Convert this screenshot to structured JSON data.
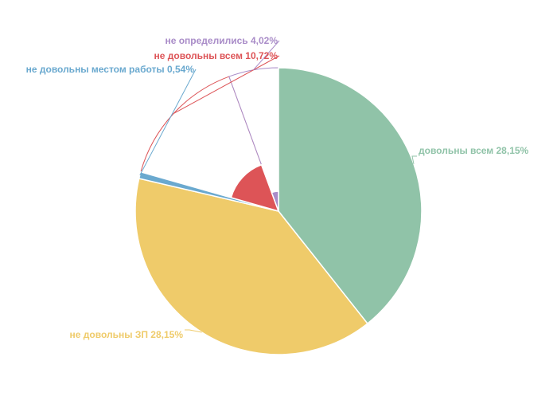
{
  "chart_data": {
    "type": "pie",
    "title": "",
    "slices": [
      {
        "label": "довольны всем 28,15%",
        "value": 40.29,
        "color": "#90c3a8"
      },
      {
        "label": "не довольны ЗП 28,15%",
        "value": 40.29,
        "color": "#efcb6a"
      },
      {
        "label": "не довольны местом работы 0,54%",
        "value": 0.77,
        "color": "#6aa9cf"
      },
      {
        "label": "не довольны всем 10,72%",
        "value": 15.34,
        "color": "#dd5457"
      },
      {
        "label": "не определились 4,02%",
        "value": 5.75,
        "color": "#a98cc8"
      }
    ],
    "start_angle_deg": 0,
    "direction": "clockwise",
    "legend": "none"
  }
}
